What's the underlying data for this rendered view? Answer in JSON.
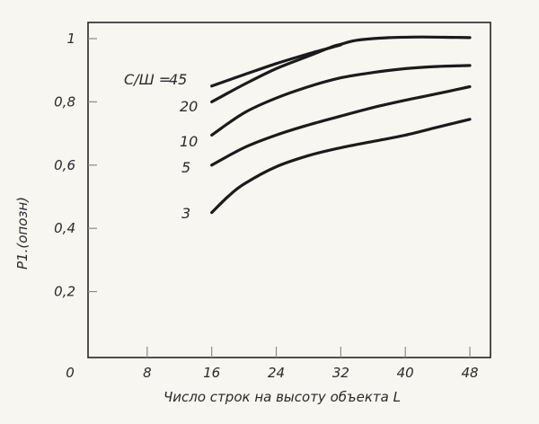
{
  "chart_data": {
    "type": "line",
    "xlabel": "Число строк на высоту объекта L",
    "ylabel": "P1.(опозн)",
    "xlim": [
      0,
      50
    ],
    "ylim": [
      0,
      1.07
    ],
    "x_ticks": [
      "0",
      "8",
      "16",
      "24",
      "32",
      "40",
      "48"
    ],
    "y_ticks": [
      "1",
      "0,8",
      "0,6",
      "0,4",
      "0,2"
    ],
    "legend_title": "С/Ш =",
    "grid": false,
    "series": [
      {
        "name": "45",
        "x": [
          16,
          20,
          24,
          28,
          32
        ],
        "y": [
          0.85,
          0.886,
          0.921,
          0.952,
          0.98
        ]
      },
      {
        "name": "20",
        "x": [
          16,
          20,
          24,
          28,
          31,
          32,
          34,
          38,
          42,
          46,
          48
        ],
        "y": [
          0.8,
          0.855,
          0.905,
          0.945,
          0.975,
          0.982,
          0.995,
          1.003,
          1.005,
          1.004,
          1.003
        ]
      },
      {
        "name": "10",
        "x": [
          16,
          20,
          24,
          28,
          32,
          36,
          40,
          44,
          48
        ],
        "y": [
          0.695,
          0.765,
          0.812,
          0.848,
          0.876,
          0.893,
          0.905,
          0.912,
          0.915
        ]
      },
      {
        "name": "5",
        "x": [
          16,
          20,
          24,
          28,
          32,
          36,
          40,
          44,
          48
        ],
        "y": [
          0.6,
          0.655,
          0.695,
          0.727,
          0.755,
          0.782,
          0.805,
          0.826,
          0.848
        ]
      },
      {
        "name": "3",
        "x": [
          16,
          18,
          20,
          24,
          28,
          32,
          36,
          40,
          44,
          48
        ],
        "y": [
          0.45,
          0.5,
          0.54,
          0.595,
          0.63,
          0.655,
          0.675,
          0.695,
          0.72,
          0.745
        ]
      }
    ]
  }
}
